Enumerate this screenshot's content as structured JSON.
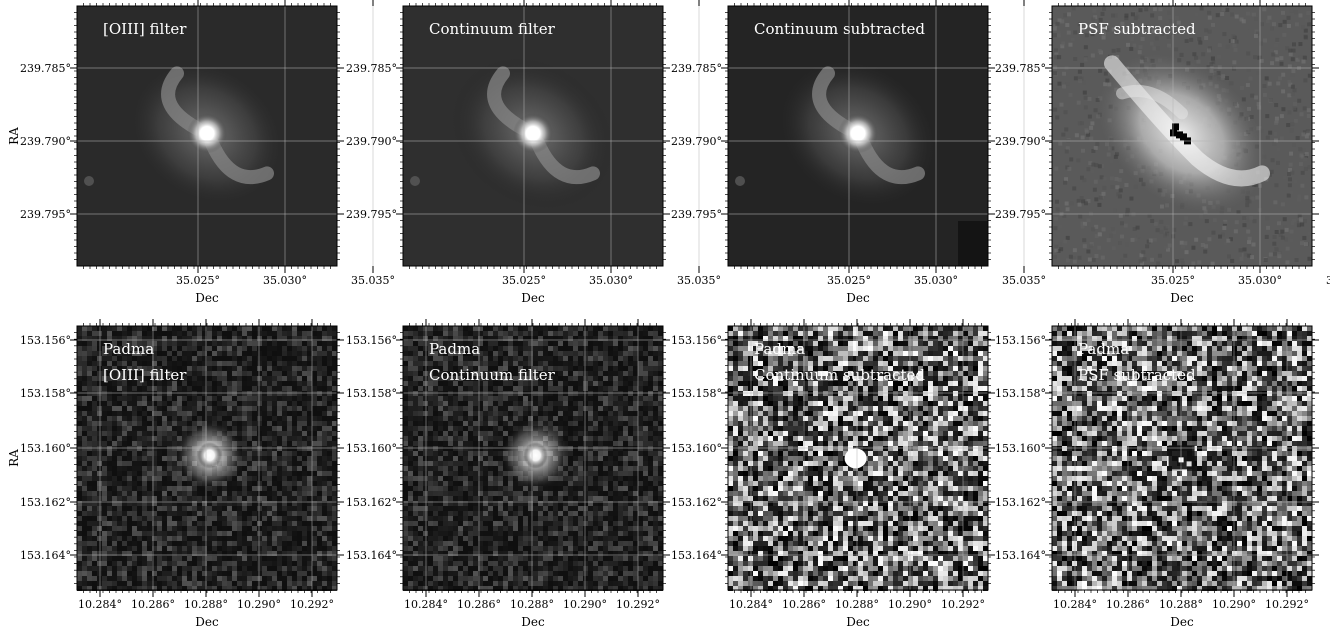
{
  "figure": {
    "rows": [
      {
        "ylabel": "RA",
        "xlabel": "Dec",
        "x_ticks": [
          "35.025°",
          "35.030°",
          "35.035°"
        ],
        "y_ticks": [
          "239.785°",
          "239.790°",
          "239.795°"
        ],
        "panels": [
          {
            "caption": [
              "[OIII] filter"
            ],
            "image": "galaxy-oiii"
          },
          {
            "caption": [
              "Continuum filter"
            ],
            "image": "galaxy-continuum"
          },
          {
            "caption": [
              "Continuum subtracted"
            ],
            "image": "galaxy-subtracted"
          },
          {
            "caption": [
              "PSF subtracted"
            ],
            "image": "galaxy-psf-residual"
          }
        ]
      },
      {
        "ylabel": "RA",
        "xlabel": "Dec",
        "x_ticks": [
          "10.284°",
          "10.286°",
          "10.288°",
          "10.290°",
          "10.292°"
        ],
        "y_ticks": [
          "153.156°",
          "153.158°",
          "153.160°",
          "153.162°",
          "153.164°"
        ],
        "panels": [
          {
            "caption": [
              "Padma",
              "[OIII] filter"
            ],
            "image": "point-oiii"
          },
          {
            "caption": [
              "Padma",
              "Continuum filter"
            ],
            "image": "point-continuum"
          },
          {
            "caption": [
              "Padma",
              "Continuum subtracted"
            ],
            "image": "point-subtracted"
          },
          {
            "caption": [
              "Padma",
              "PSF subtracted"
            ],
            "image": "point-psf-residual"
          }
        ]
      }
    ]
  }
}
